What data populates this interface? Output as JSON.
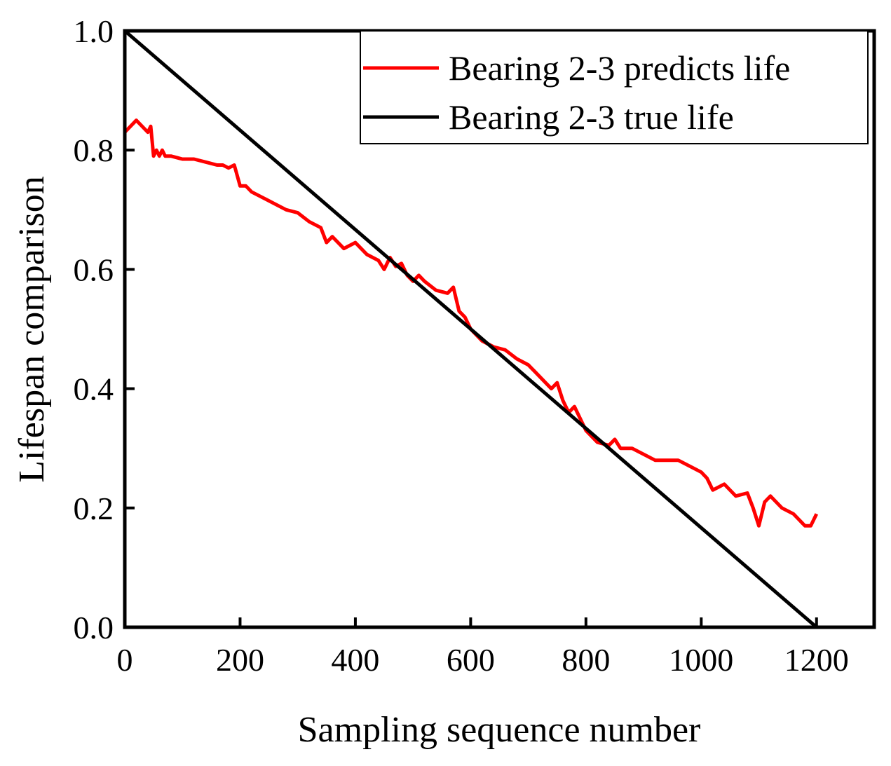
{
  "chart_data": {
    "type": "line",
    "title": "",
    "xlabel": "Sampling sequence number",
    "ylabel": "Lifespan comparison",
    "xlim": [
      0,
      1300
    ],
    "ylim": [
      0.0,
      1.0
    ],
    "xticks": [
      "0",
      "200",
      "400",
      "600",
      "800",
      "1000",
      "1200"
    ],
    "yticks": [
      "0.0",
      "0.2",
      "0.4",
      "0.6",
      "0.8",
      "1.0"
    ],
    "grid": false,
    "legend_position": "top-right",
    "series": [
      {
        "name": "Bearing 2-3 predicts life",
        "color": "#ff0000",
        "x": [
          0,
          10,
          20,
          30,
          40,
          45,
          50,
          55,
          60,
          65,
          70,
          80,
          100,
          120,
          140,
          160,
          170,
          180,
          190,
          200,
          210,
          220,
          240,
          260,
          280,
          300,
          320,
          340,
          350,
          360,
          380,
          400,
          420,
          440,
          450,
          460,
          470,
          480,
          490,
          500,
          510,
          520,
          540,
          560,
          570,
          580,
          590,
          600,
          620,
          640,
          660,
          680,
          700,
          720,
          740,
          750,
          760,
          770,
          780,
          800,
          820,
          840,
          850,
          860,
          880,
          900,
          920,
          940,
          960,
          980,
          1000,
          1010,
          1020,
          1040,
          1060,
          1080,
          1090,
          1100,
          1110,
          1120,
          1140,
          1160,
          1170,
          1180,
          1190,
          1200
        ],
        "values": [
          0.83,
          0.84,
          0.85,
          0.84,
          0.83,
          0.84,
          0.79,
          0.8,
          0.79,
          0.8,
          0.79,
          0.79,
          0.785,
          0.785,
          0.78,
          0.775,
          0.775,
          0.77,
          0.775,
          0.74,
          0.74,
          0.73,
          0.72,
          0.71,
          0.7,
          0.695,
          0.68,
          0.67,
          0.645,
          0.655,
          0.635,
          0.645,
          0.625,
          0.615,
          0.6,
          0.62,
          0.605,
          0.61,
          0.59,
          0.58,
          0.59,
          0.58,
          0.565,
          0.56,
          0.57,
          0.53,
          0.52,
          0.5,
          0.48,
          0.47,
          0.465,
          0.45,
          0.44,
          0.42,
          0.4,
          0.41,
          0.38,
          0.36,
          0.37,
          0.33,
          0.31,
          0.305,
          0.315,
          0.3,
          0.3,
          0.29,
          0.28,
          0.28,
          0.28,
          0.27,
          0.26,
          0.25,
          0.23,
          0.24,
          0.22,
          0.225,
          0.2,
          0.17,
          0.21,
          0.22,
          0.2,
          0.19,
          0.18,
          0.17,
          0.17,
          0.19
        ]
      },
      {
        "name": "Bearing 2-3 true life",
        "color": "#000000",
        "x": [
          0,
          1200
        ],
        "values": [
          1.0,
          0.0
        ]
      }
    ]
  }
}
